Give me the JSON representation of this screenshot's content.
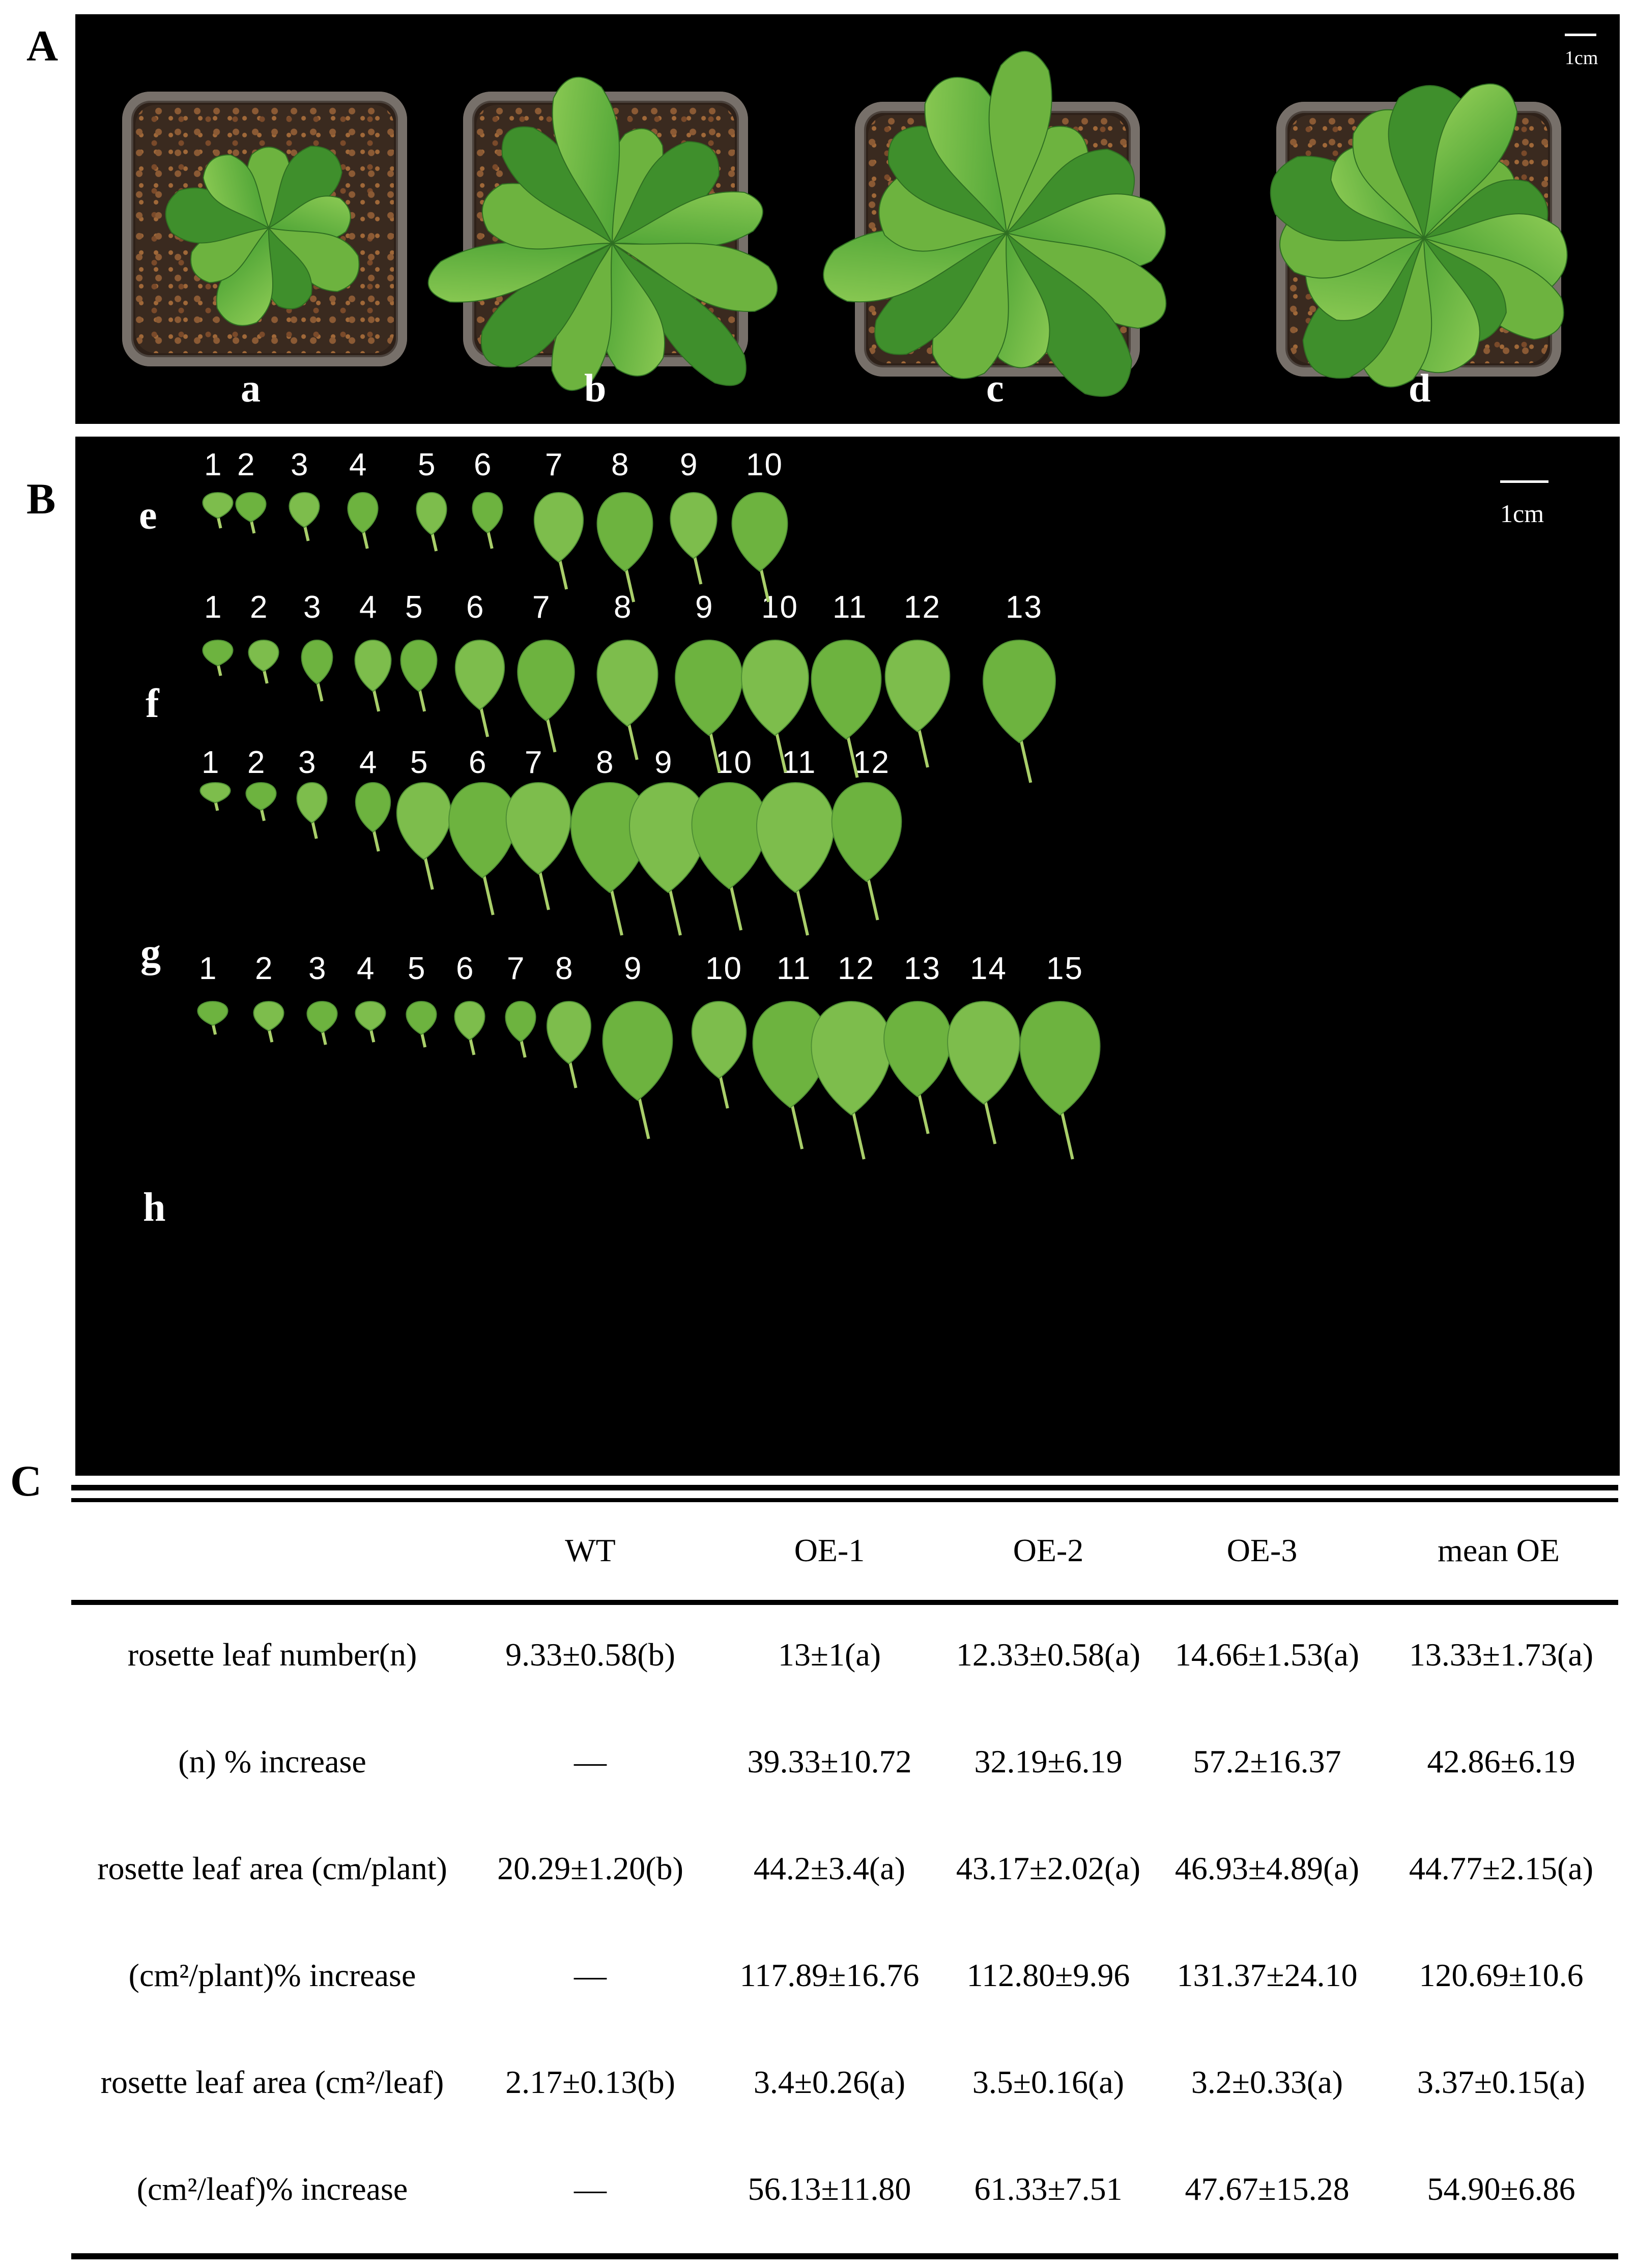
{
  "panel_a": {
    "letter": "A",
    "scale_label": "1cm",
    "plant_labels": [
      "a",
      "b",
      "c",
      "d"
    ]
  },
  "panel_b": {
    "letter": "B",
    "scale_label": "1cm",
    "rows": [
      {
        "label": "e",
        "numbers": [
          "1",
          "2",
          "3",
          "4",
          "5",
          "6",
          "7",
          "8",
          "9",
          "10"
        ]
      },
      {
        "label": "f",
        "numbers": [
          "1",
          "2",
          "3",
          "4",
          "5",
          "6",
          "7",
          "8",
          "9",
          "10",
          "11",
          "12",
          "13"
        ]
      },
      {
        "label": "g",
        "numbers": [
          "1",
          "2",
          "3",
          "4",
          "5",
          "6",
          "7",
          "8",
          "9",
          "10",
          "11",
          "12"
        ]
      },
      {
        "label": "h",
        "numbers": [
          "1",
          "2",
          "3",
          "4",
          "5",
          "6",
          "7",
          "8",
          "9",
          "10",
          "11",
          "12",
          "13",
          "14",
          "15"
        ]
      }
    ]
  },
  "panel_c": {
    "letter": "C",
    "columns": [
      "WT",
      "OE-1",
      "OE-2",
      "OE-3",
      "mean OE"
    ],
    "rows": [
      {
        "label": "rosette leaf number(n)",
        "cells": [
          "9.33±0.58(b)",
          "13±1(a)",
          "12.33±0.58(a)",
          "14.66±1.53(a)",
          "13.33±1.73(a)"
        ]
      },
      {
        "label": "(n) % increase",
        "cells": [
          "—",
          "39.33±10.72",
          "32.19±6.19",
          "57.2±16.37",
          "42.86±6.19"
        ]
      },
      {
        "label": "rosette leaf area (cm/plant)",
        "cells": [
          "20.29±1.20(b)",
          "44.2±3.4(a)",
          "43.17±2.02(a)",
          "46.93±4.89(a)",
          "44.77±2.15(a)"
        ]
      },
      {
        "label": "(cm²/plant)% increase",
        "cells": [
          "—",
          "117.89±16.76",
          "112.80±9.96",
          "131.37±24.10",
          "120.69±10.6"
        ]
      },
      {
        "label": "rosette leaf area (cm²/leaf)",
        "cells": [
          "2.17±0.13(b)",
          "3.4±0.26(a)",
          "3.5±0.16(a)",
          "3.2±0.33(a)",
          "3.37±0.15(a)"
        ]
      },
      {
        "label": "(cm²/leaf)% increase",
        "cells": [
          "—",
          "56.13±11.80",
          "61.33±7.51",
          "47.67±15.28",
          "54.90±6.86"
        ]
      }
    ]
  },
  "colors": {
    "leaf_dark": "#3f8f2c",
    "leaf_mid": "#6db33f",
    "leaf_light": "#a9cf6a"
  }
}
